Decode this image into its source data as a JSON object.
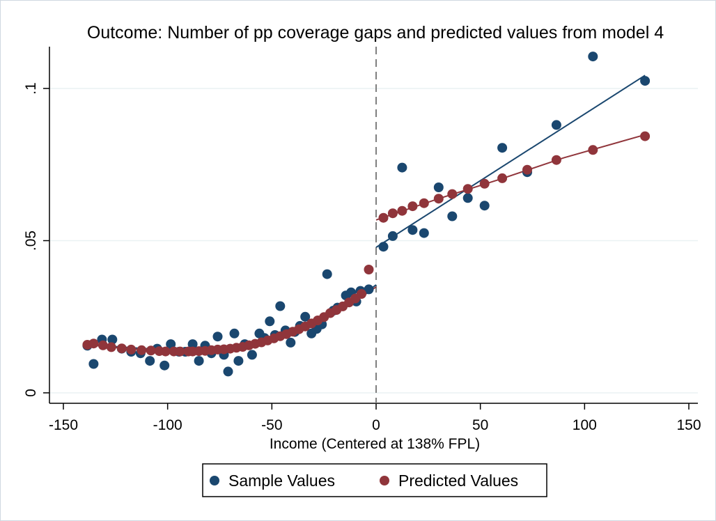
{
  "chart_data": {
    "type": "scatter",
    "title": "Outcome: Number of pp coverage gaps and predicted values from model 4",
    "xlabel": "Income (Centered at 138% FPL)",
    "ylabel": "",
    "xlim": [
      -150,
      150
    ],
    "ylim": [
      0,
      0.1
    ],
    "x_ticks": [
      -150,
      -100,
      -50,
      0,
      50,
      100,
      150
    ],
    "x_tick_labels": [
      "-150",
      "-100",
      "-50",
      "0",
      "50",
      "100",
      "150"
    ],
    "y_ticks": [
      0,
      0.05,
      0.1
    ],
    "y_tick_labels": [
      "0",
      ".05",
      ".1"
    ],
    "cutoff_x": 0,
    "grid": "horizontal",
    "legend_position": "bottom",
    "series": [
      {
        "name": "Sample Values",
        "color": "#1a476f",
        "x": [
          -138.5,
          -135.5,
          -131.5,
          -126.5,
          -122,
          -117.5,
          -113,
          -108.5,
          -105,
          -101.5,
          -98.5,
          -94.5,
          -91.5,
          -88,
          -85,
          -82,
          -79,
          -76,
          -73,
          -71,
          -68,
          -66,
          -63,
          -59.5,
          -56,
          -53.5,
          -51,
          -48.5,
          -46,
          -43.5,
          -41,
          -39,
          -36.5,
          -34,
          -31,
          -28.5,
          -26,
          -23.5,
          -20.5,
          -18.5,
          -14.5,
          -12,
          -9.5,
          -7.5,
          -3.5,
          3.5,
          8,
          12.5,
          17.5,
          23,
          30,
          36.5,
          44,
          52,
          60.5,
          72.5,
          86.5,
          104,
          129
        ],
        "y": [
          0.0155,
          0.0095,
          0.0175,
          0.0175,
          0.0145,
          0.0135,
          0.013,
          0.0105,
          0.0145,
          0.009,
          0.016,
          0.0135,
          0.0135,
          0.016,
          0.0105,
          0.0155,
          0.013,
          0.0185,
          0.0125,
          0.007,
          0.0195,
          0.0105,
          0.016,
          0.0125,
          0.0195,
          0.018,
          0.0235,
          0.019,
          0.0285,
          0.0205,
          0.0165,
          0.02,
          0.022,
          0.025,
          0.0195,
          0.021,
          0.0225,
          0.039,
          0.027,
          0.028,
          0.032,
          0.033,
          0.03,
          0.0335,
          0.034,
          0.048,
          0.0515,
          0.074,
          0.0535,
          0.0525,
          0.0675,
          0.058,
          0.064,
          0.0615,
          0.0805,
          0.0725,
          0.088,
          0.1105,
          0.1025
        ]
      },
      {
        "name": "Predicted Values",
        "color": "#90353b",
        "x": [
          -138.5,
          -135.5,
          -131,
          -127,
          -122,
          -117.5,
          -112.5,
          -108,
          -104,
          -101,
          -97,
          -94,
          -90,
          -88,
          -85,
          -82,
          -79,
          -76,
          -73,
          -70,
          -67,
          -64,
          -61,
          -58,
          -55,
          -52,
          -49,
          -46,
          -43,
          -40,
          -37,
          -34,
          -31,
          -28,
          -25,
          -22,
          -19,
          -16,
          -13,
          -10,
          -7,
          -3.5,
          3.5,
          8,
          12.5,
          17.5,
          23,
          30,
          36.5,
          44,
          52,
          60.5,
          72.5,
          86.5,
          104,
          129
        ],
        "y": [
          0.0158,
          0.0162,
          0.0156,
          0.015,
          0.0146,
          0.0142,
          0.014,
          0.0139,
          0.0137,
          0.0136,
          0.0136,
          0.0136,
          0.0136,
          0.0136,
          0.0137,
          0.0138,
          0.014,
          0.0142,
          0.0143,
          0.0145,
          0.0148,
          0.0151,
          0.0156,
          0.0161,
          0.0166,
          0.0172,
          0.0179,
          0.0186,
          0.0193,
          0.0201,
          0.0209,
          0.0218,
          0.0228,
          0.0238,
          0.0249,
          0.0262,
          0.0272,
          0.0284,
          0.0297,
          0.031,
          0.0325,
          0.0405,
          0.0575,
          0.059,
          0.0598,
          0.0613,
          0.0623,
          0.0638,
          0.0653,
          0.067,
          0.0687,
          0.0705,
          0.0733,
          0.0765,
          0.0798,
          0.0843
        ]
      }
    ],
    "fit_lines": [
      {
        "color": "#1a476f",
        "x": [
          -138,
          -125,
          -112,
          -100,
          -88,
          -75,
          -62,
          -50,
          -38,
          -25,
          -12,
          0
        ],
        "y": [
          0.0158,
          0.0152,
          0.0146,
          0.0142,
          0.0142,
          0.0144,
          0.0153,
          0.0171,
          0.0201,
          0.0242,
          0.0294,
          0.0355
        ]
      },
      {
        "color": "#90353b",
        "x": [
          -138,
          -125,
          -112,
          -100,
          -88,
          -75,
          -62,
          -50,
          -38,
          -25,
          -12,
          0
        ],
        "y": [
          0.0158,
          0.0149,
          0.0141,
          0.0137,
          0.0136,
          0.0141,
          0.0152,
          0.0172,
          0.0203,
          0.0243,
          0.0291,
          0.0348
        ]
      },
      {
        "color": "#1a476f",
        "x": [
          0,
          129
        ],
        "y": [
          0.0478,
          0.1043
        ]
      },
      {
        "color": "#90353b",
        "x": [
          0,
          30,
          60,
          90,
          129
        ],
        "y": [
          0.0568,
          0.0638,
          0.0703,
          0.0772,
          0.0848
        ]
      }
    ]
  }
}
